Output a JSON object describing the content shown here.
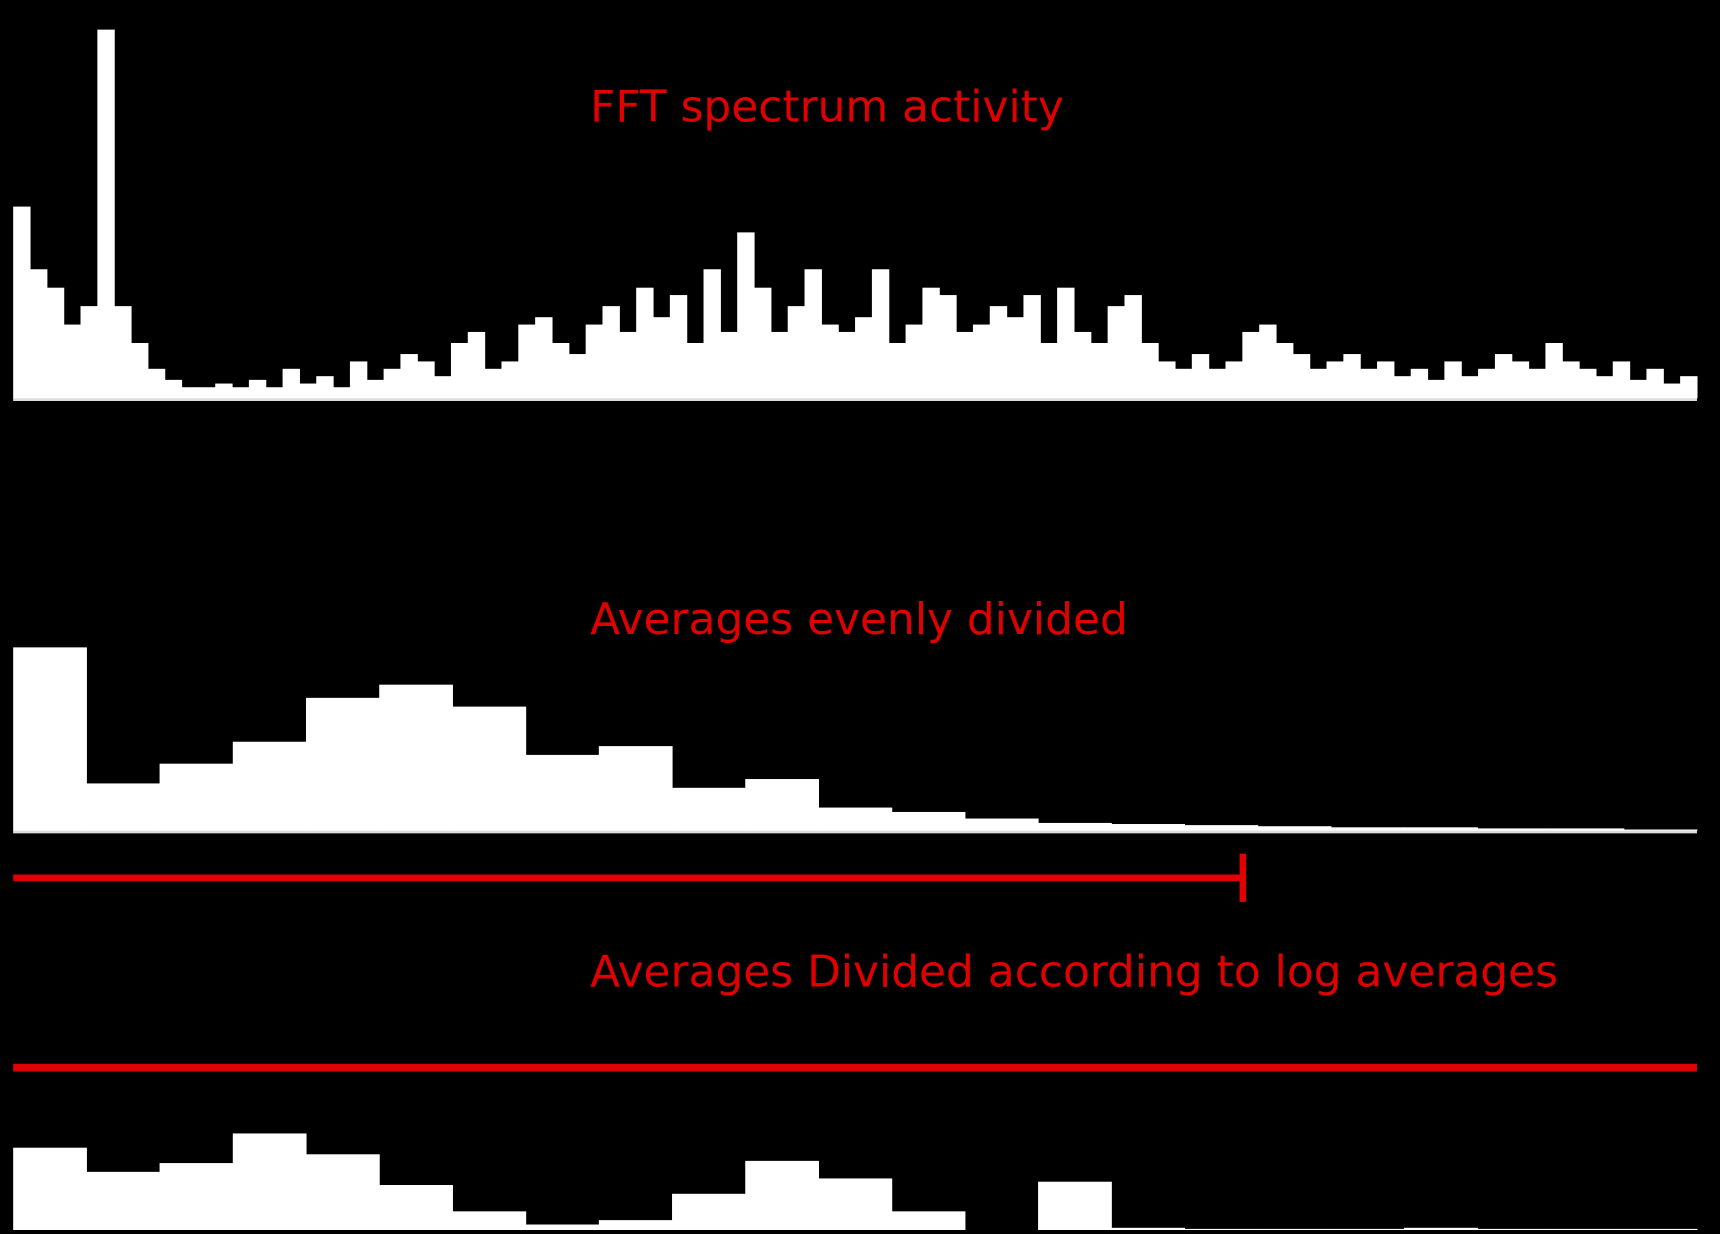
{
  "chart_data": [
    {
      "type": "bar",
      "title": "FFT spectrum activity",
      "color": "#ffffff",
      "ylim": [
        0,
        100
      ],
      "values": [
        52,
        35,
        30,
        20,
        25,
        100,
        25,
        15,
        8,
        5,
        3,
        3,
        4,
        3,
        5,
        3,
        8,
        4,
        6,
        3,
        10,
        5,
        8,
        12,
        10,
        6,
        15,
        18,
        8,
        10,
        20,
        22,
        15,
        12,
        20,
        25,
        18,
        30,
        22,
        28,
        15,
        35,
        18,
        45,
        30,
        18,
        25,
        35,
        20,
        18,
        22,
        35,
        15,
        20,
        30,
        28,
        18,
        20,
        25,
        22,
        28,
        15,
        30,
        18,
        15,
        25,
        28,
        15,
        10,
        8,
        12,
        8,
        10,
        18,
        20,
        15,
        12,
        8,
        10,
        12,
        8,
        10,
        6,
        8,
        5,
        10,
        6,
        8,
        12,
        10,
        8,
        15,
        10,
        8,
        6,
        10,
        5,
        8,
        4,
        6
      ]
    },
    {
      "type": "bar",
      "title": "Averages evenly divided",
      "color": "#ffffff",
      "ylim": [
        0,
        180
      ],
      "values": [
        167,
        43,
        61,
        81,
        121,
        133,
        113,
        69,
        77,
        39,
        47,
        21,
        17,
        11,
        7,
        6,
        5,
        4,
        3,
        3,
        2,
        2,
        1
      ]
    },
    {
      "type": "bar",
      "title": "Averages Divided according to log averages",
      "color": "#ffffff",
      "ylim": [
        0,
        100
      ],
      "values": [
        75,
        53,
        61,
        88,
        69,
        41,
        17,
        5,
        9,
        33,
        63,
        47,
        17,
        0,
        44,
        2,
        1,
        1,
        1,
        2,
        1,
        1,
        1
      ]
    }
  ]
}
